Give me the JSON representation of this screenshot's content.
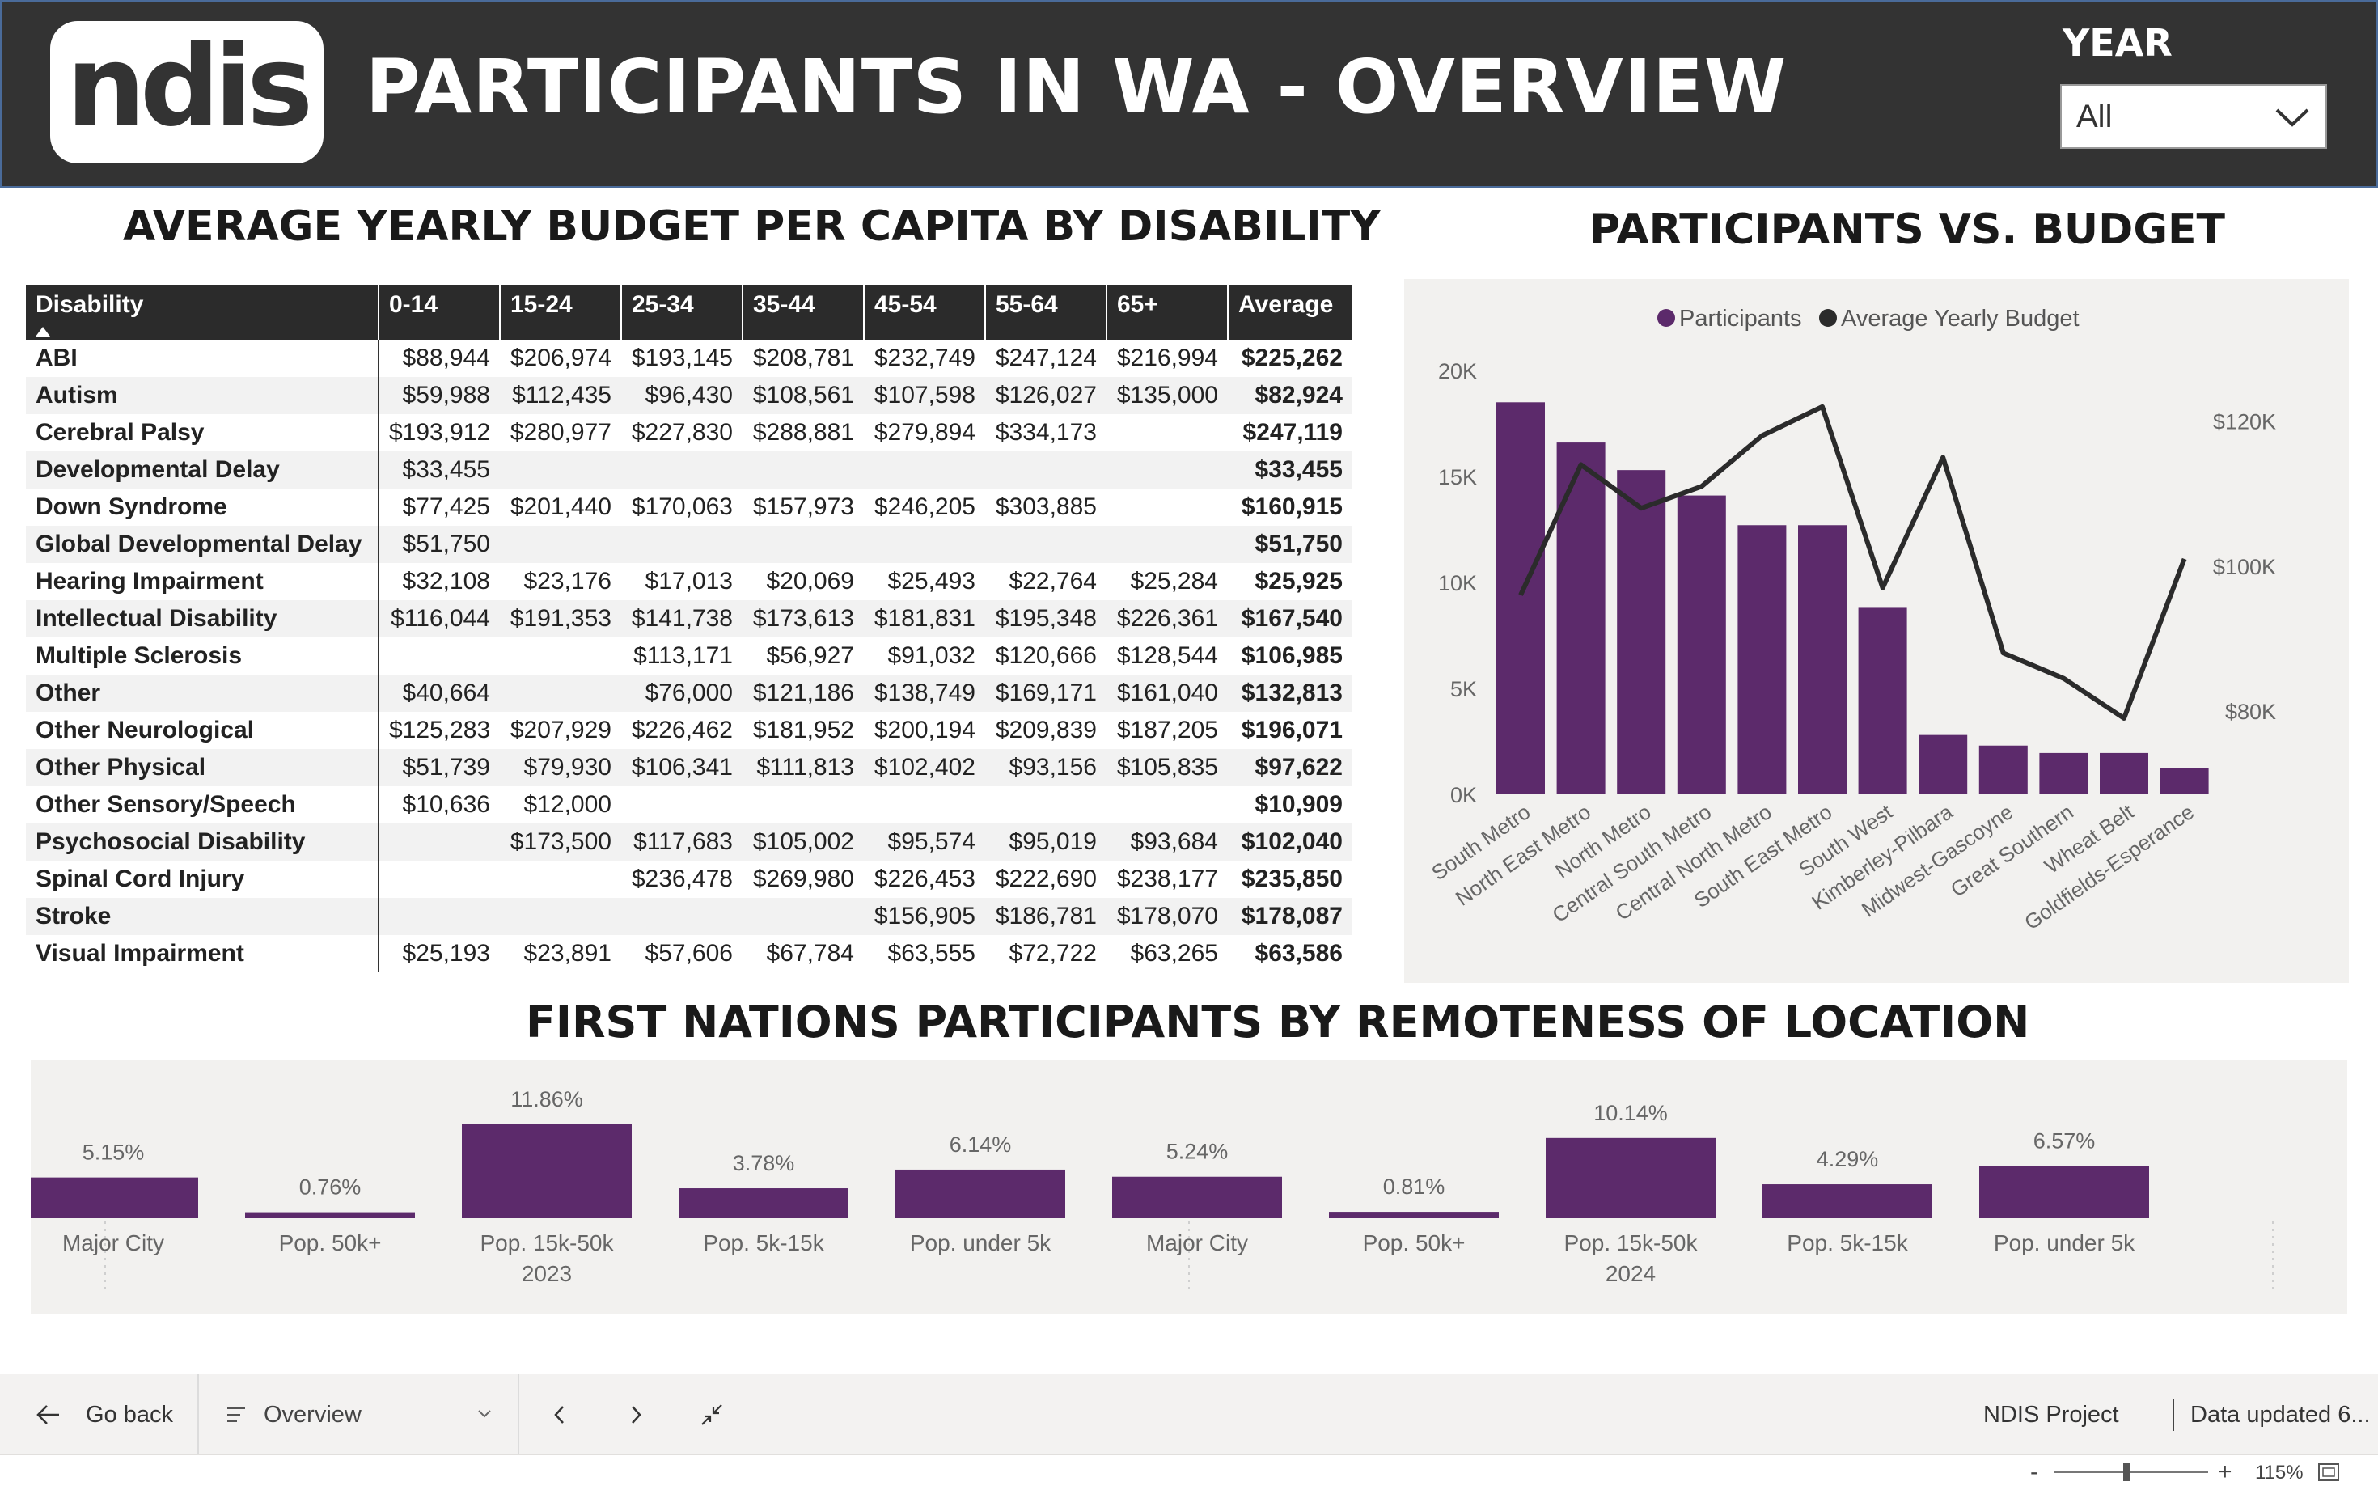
{
  "header": {
    "logo_text": "ndis",
    "title": "PARTICIPANTS IN WA - OVERVIEW",
    "year_label": "YEAR",
    "year_value": "All"
  },
  "sections": {
    "budget_title": "AVERAGE YEARLY BUDGET PER CAPITA BY DISABILITY",
    "combo_title": "PARTICIPANTS VS. BUDGET",
    "fn_title": "FIRST NATIONS PARTICIPANTS BY REMOTENESS OF LOCATION"
  },
  "budget_table": {
    "columns": [
      "Disability",
      "0-14",
      "15-24",
      "25-34",
      "35-44",
      "45-54",
      "55-64",
      "65+",
      "Average"
    ],
    "sort_column": "Disability",
    "rows": [
      [
        "ABI",
        "$88,944",
        "$206,974",
        "$193,145",
        "$208,781",
        "$232,749",
        "$247,124",
        "$216,994",
        "$225,262"
      ],
      [
        "Autism",
        "$59,988",
        "$112,435",
        "$96,430",
        "$108,561",
        "$107,598",
        "$126,027",
        "$135,000",
        "$82,924"
      ],
      [
        "Cerebral Palsy",
        "$193,912",
        "$280,977",
        "$227,830",
        "$288,881",
        "$279,894",
        "$334,173",
        "",
        "$247,119"
      ],
      [
        "Developmental Delay",
        "$33,455",
        "",
        "",
        "",
        "",
        "",
        "",
        "$33,455"
      ],
      [
        "Down Syndrome",
        "$77,425",
        "$201,440",
        "$170,063",
        "$157,973",
        "$246,205",
        "$303,885",
        "",
        "$160,915"
      ],
      [
        "Global Developmental Delay",
        "$51,750",
        "",
        "",
        "",
        "",
        "",
        "",
        "$51,750"
      ],
      [
        "Hearing Impairment",
        "$32,108",
        "$23,176",
        "$17,013",
        "$20,069",
        "$25,493",
        "$22,764",
        "$25,284",
        "$25,925"
      ],
      [
        "Intellectual Disability",
        "$116,044",
        "$191,353",
        "$141,738",
        "$173,613",
        "$181,831",
        "$195,348",
        "$226,361",
        "$167,540"
      ],
      [
        "Multiple Sclerosis",
        "",
        "",
        "$113,171",
        "$56,927",
        "$91,032",
        "$120,666",
        "$128,544",
        "$106,985"
      ],
      [
        "Other",
        "$40,664",
        "",
        "$76,000",
        "$121,186",
        "$138,749",
        "$169,171",
        "$161,040",
        "$132,813"
      ],
      [
        "Other Neurological",
        "$125,283",
        "$207,929",
        "$226,462",
        "$181,952",
        "$200,194",
        "$209,839",
        "$187,205",
        "$196,071"
      ],
      [
        "Other Physical",
        "$51,739",
        "$79,930",
        "$106,341",
        "$111,813",
        "$102,402",
        "$93,156",
        "$105,835",
        "$97,622"
      ],
      [
        "Other Sensory/Speech",
        "$10,636",
        "$12,000",
        "",
        "",
        "",
        "",
        "",
        "$10,909"
      ],
      [
        "Psychosocial Disability",
        "",
        "$173,500",
        "$117,683",
        "$105,002",
        "$95,574",
        "$95,019",
        "$93,684",
        "$102,040"
      ],
      [
        "Spinal Cord Injury",
        "",
        "",
        "$236,478",
        "$269,980",
        "$226,453",
        "$222,690",
        "$238,177",
        "$235,850"
      ],
      [
        "Stroke",
        "",
        "",
        "",
        "",
        "$156,905",
        "$186,781",
        "$178,070",
        "$178,087"
      ],
      [
        "Visual Impairment",
        "$25,193",
        "$23,891",
        "$57,606",
        "$67,784",
        "$63,555",
        "$72,722",
        "$63,265",
        "$63,586"
      ]
    ]
  },
  "chart_data": [
    {
      "type": "bar+line",
      "title": "PARTICIPANTS VS. BUDGET",
      "legend": [
        "Participants",
        "Average Yearly Budget"
      ],
      "legend_position": "top-center",
      "categories": [
        "South Metro",
        "North East Metro",
        "North Metro",
        "Central South Metro",
        "Central North Metro",
        "South East Metro",
        "South West",
        "Kimberley-Pilbara",
        "Midwest-Gascoyne",
        "Great Southern",
        "Wheat Belt",
        "Goldfields-Esperance"
      ],
      "series": [
        {
          "name": "Participants",
          "axis": "left",
          "kind": "bar",
          "color": "#5c2a6b",
          "values": [
            18500,
            16600,
            15300,
            14100,
            12700,
            12700,
            8800,
            2800,
            2300,
            1950,
            1950,
            1250
          ]
        },
        {
          "name": "Average Yearly Budget",
          "axis": "right",
          "kind": "line",
          "color": "#2b2b2b",
          "values": [
            96000,
            114000,
            108000,
            111000,
            118000,
            122000,
            97000,
            115000,
            88000,
            84500,
            79000,
            101000
          ]
        }
      ],
      "left_axis": {
        "ylim": [
          0,
          20000
        ],
        "ticks": [
          "0K",
          "5K",
          "10K",
          "15K",
          "20K"
        ],
        "tick_values": [
          0,
          5000,
          10000,
          15000,
          20000
        ]
      },
      "right_axis": {
        "ylim": [
          68500,
          127000
        ],
        "ticks": [
          "$80K",
          "$100K",
          "$120K"
        ],
        "tick_values": [
          80000,
          100000,
          120000
        ]
      },
      "grid": false
    },
    {
      "type": "bar",
      "title": "FIRST NATIONS PARTICIPANTS BY REMOTENESS OF LOCATION",
      "groups": [
        {
          "label": "2023",
          "categories": [
            "Major City",
            "Pop. 50k+",
            "Pop. 15k-50k",
            "Pop. 5k-15k",
            "Pop. under 5k"
          ],
          "values": [
            5.15,
            0.76,
            11.86,
            3.78,
            6.14
          ],
          "labels": [
            "5.15%",
            "0.76%",
            "11.86%",
            "3.78%",
            "6.14%"
          ]
        },
        {
          "label": "2024",
          "categories": [
            "Major City",
            "Pop. 50k+",
            "Pop. 15k-50k",
            "Pop. 5k-15k",
            "Pop. under 5k"
          ],
          "values": [
            5.24,
            0.81,
            10.14,
            4.29,
            6.57
          ],
          "labels": [
            "5.24%",
            "0.81%",
            "10.14%",
            "4.29%",
            "6.57%"
          ]
        }
      ],
      "ylim": [
        0,
        11.86
      ],
      "color": "#5c2a6b",
      "grid": false
    }
  ],
  "navbar": {
    "back_label": "Go back",
    "page_label": "Overview",
    "project_label": "NDIS Project",
    "updated_label": "Data updated 6..."
  },
  "statusbar": {
    "zoom_label": "115%",
    "zoom_value": 0.47
  },
  "colors": {
    "header_bg": "#333333",
    "accent": "#5c2a6b",
    "panel_bg": "#f2f1ef",
    "line": "#2b2b2b"
  },
  "icons": [
    "chevron-down-icon",
    "back-arrow-icon",
    "page-list-icon",
    "chevron-left-icon",
    "chevron-right-icon",
    "collapse-icon",
    "fit-page-icon"
  ]
}
